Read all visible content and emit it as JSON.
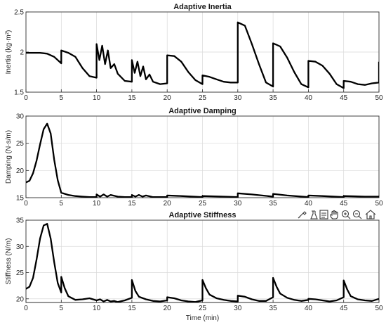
{
  "chart_data": [
    {
      "type": "line",
      "title": "Adaptive Inertia",
      "xlabel": "",
      "ylabel": "Inertia (kg·m²)",
      "xlim": [
        0,
        50
      ],
      "ylim": [
        1.5,
        2.5
      ],
      "xticks": [
        0,
        5,
        10,
        15,
        20,
        25,
        30,
        35,
        40,
        45,
        50
      ],
      "yticks": [
        1.5,
        2,
        2.5
      ],
      "grid": true,
      "series": [
        {
          "x": [
            0,
            2,
            3,
            4,
            5,
            5,
            6,
            7,
            8,
            9,
            10,
            10,
            10.4,
            10.8,
            11.2,
            11.6,
            12,
            12.5,
            13,
            14,
            15,
            15,
            15.4,
            15.8,
            16.2,
            16.6,
            17,
            17.5,
            18,
            19,
            20,
            20,
            21,
            22,
            23,
            24,
            25,
            25,
            26,
            27,
            28,
            29,
            30,
            30,
            31,
            32,
            33,
            34,
            35,
            35,
            36,
            37,
            38,
            39,
            40,
            40,
            41,
            42,
            43,
            44,
            45,
            45,
            46,
            47,
            48,
            49,
            50,
            50
          ],
          "y": [
            1.99,
            1.99,
            1.98,
            1.94,
            1.86,
            2.02,
            1.99,
            1.94,
            1.8,
            1.7,
            1.68,
            2.1,
            1.9,
            2.08,
            1.85,
            2.02,
            1.8,
            1.85,
            1.73,
            1.64,
            1.63,
            1.9,
            1.74,
            1.88,
            1.7,
            1.82,
            1.66,
            1.72,
            1.63,
            1.6,
            1.61,
            1.96,
            1.95,
            1.88,
            1.75,
            1.65,
            1.6,
            1.71,
            1.69,
            1.66,
            1.63,
            1.62,
            1.62,
            2.37,
            2.33,
            2.1,
            1.85,
            1.62,
            1.57,
            2.11,
            2.07,
            1.93,
            1.75,
            1.6,
            1.56,
            1.89,
            1.88,
            1.83,
            1.73,
            1.6,
            1.55,
            1.64,
            1.63,
            1.6,
            1.59,
            1.61,
            1.62,
            1.88
          ]
        }
      ]
    },
    {
      "type": "line",
      "title": "Adaptive Damping",
      "xlabel": "",
      "ylabel": "Damping (N·s/m)",
      "xlim": [
        0,
        50
      ],
      "ylim": [
        15,
        30
      ],
      "xticks": [
        0,
        5,
        10,
        15,
        20,
        25,
        30,
        35,
        40,
        45,
        50
      ],
      "yticks": [
        15,
        20,
        25,
        30
      ],
      "grid": true,
      "series": [
        {
          "x": [
            0,
            0.5,
            1,
            1.5,
            2,
            2.5,
            3,
            3.5,
            4,
            4.5,
            5,
            6,
            7,
            8,
            9,
            10,
            10,
            10.5,
            11,
            11.5,
            12,
            13,
            14,
            15,
            15,
            15.5,
            16,
            16.5,
            17,
            18,
            19,
            20,
            20,
            22,
            25,
            25,
            28,
            30,
            30,
            32,
            35,
            35,
            37,
            40,
            40,
            42,
            45,
            45,
            48,
            50
          ],
          "y": [
            17.8,
            18.1,
            19.5,
            21.8,
            24.8,
            27.6,
            28.6,
            26.8,
            22,
            18.2,
            15.9,
            15.5,
            15.3,
            15.2,
            15.1,
            15.1,
            15.6,
            15.2,
            15.6,
            15.2,
            15.5,
            15.2,
            15.1,
            15.1,
            15.5,
            15.2,
            15.5,
            15.2,
            15.4,
            15.1,
            15.1,
            15.1,
            15.4,
            15.3,
            15.1,
            15.3,
            15.2,
            15.1,
            15.8,
            15.6,
            15.2,
            15.7,
            15.4,
            15.1,
            15.4,
            15.3,
            15.1,
            15.3,
            15.2,
            15.2
          ]
        }
      ]
    },
    {
      "type": "line",
      "title": "Adaptive Stiffness",
      "xlabel": "Time (min)",
      "ylabel": "Stiffness (N/m)",
      "xlim": [
        0,
        50
      ],
      "ylim": [
        19.3,
        35
      ],
      "xticks": [
        0,
        5,
        10,
        15,
        20,
        25,
        30,
        35,
        40,
        45,
        50
      ],
      "yticks": [
        20,
        25,
        30,
        35
      ],
      "grid": true,
      "series": [
        {
          "x": [
            0,
            0.5,
            1,
            1.5,
            2,
            2.5,
            3,
            3.5,
            4,
            4.5,
            5,
            5,
            5.5,
            6,
            7,
            8,
            9,
            10,
            10.5,
            11,
            11.5,
            12,
            12.5,
            13,
            14,
            15,
            15,
            15.5,
            16,
            17,
            18,
            19,
            20,
            20,
            21,
            22,
            23,
            24,
            25,
            25,
            25.5,
            26,
            27,
            28,
            29,
            30,
            30,
            31,
            32,
            33,
            34,
            35,
            35,
            35.5,
            36,
            37,
            38,
            39,
            40,
            40,
            41,
            42,
            43,
            44,
            45,
            45,
            45.5,
            46,
            47,
            48,
            49,
            50
          ],
          "y": [
            21.9,
            22.3,
            24,
            27.5,
            31.5,
            34,
            34.3,
            31.5,
            27,
            23,
            21.2,
            24.2,
            22,
            20.5,
            19.8,
            19.9,
            20.1,
            19.7,
            19.9,
            19.5,
            19.8,
            19.5,
            19.6,
            19.4,
            19.7,
            20.2,
            23.6,
            21.5,
            20.4,
            19.9,
            19.6,
            19.5,
            19.7,
            20.3,
            20.1,
            19.7,
            19.5,
            19.4,
            19.7,
            23.6,
            22,
            20.8,
            20.1,
            19.8,
            19.6,
            19.5,
            20.6,
            20.4,
            19.9,
            19.6,
            19.6,
            20.3,
            24,
            22.3,
            21,
            20.2,
            19.8,
            19.6,
            19.8,
            20,
            19.9,
            19.7,
            19.5,
            19.7,
            20.3,
            23.5,
            21.8,
            20.5,
            19.9,
            19.7,
            19.6,
            20
          ]
        }
      ]
    }
  ]
}
